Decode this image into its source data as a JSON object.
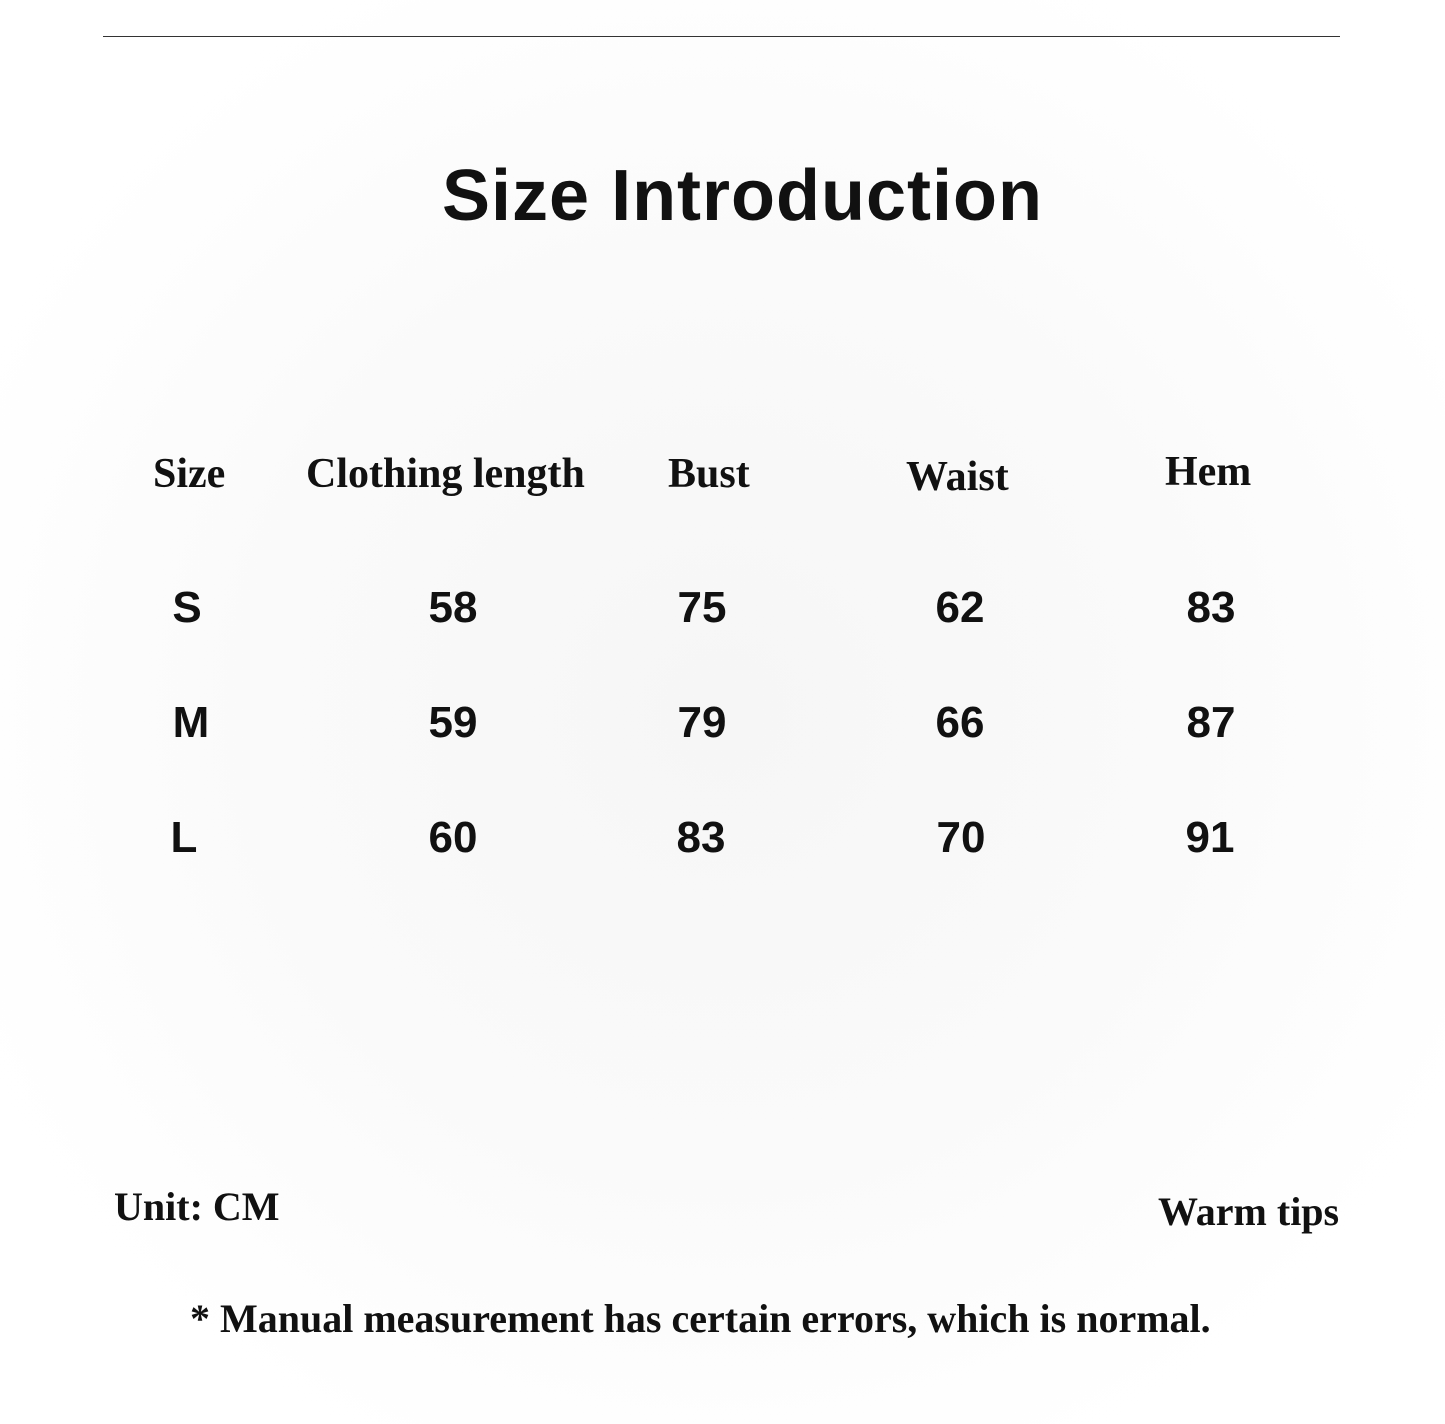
{
  "title": "Size Introduction",
  "table": {
    "headers": [
      "Size",
      "Clothing length",
      "Bust",
      "Waist",
      "Hem"
    ],
    "rows": [
      [
        "S",
        "58",
        "75",
        "62",
        "83"
      ],
      [
        "M",
        "59",
        "79",
        "66",
        "87"
      ],
      [
        "L",
        "60",
        "83",
        "70",
        "91"
      ]
    ]
  },
  "footer": {
    "unit": "Unit: CM",
    "tips_label": "Warm tips",
    "note": "* Manual measurement has certain errors, which is normal."
  }
}
